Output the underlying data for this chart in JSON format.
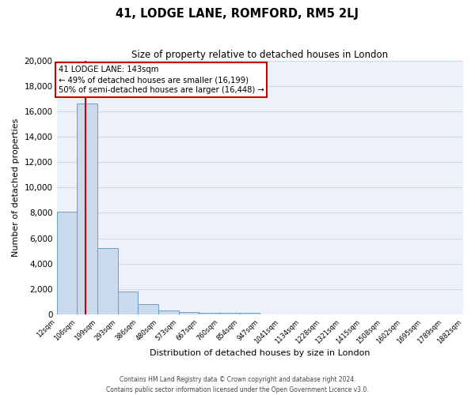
{
  "title": "41, LODGE LANE, ROMFORD, RM5 2LJ",
  "subtitle": "Size of property relative to detached houses in London",
  "xlabel": "Distribution of detached houses by size in London",
  "ylabel": "Number of detached properties",
  "bar_values": [
    8100,
    16600,
    5200,
    1800,
    800,
    300,
    200,
    150,
    100,
    100,
    0,
    0,
    0,
    0,
    0,
    0,
    0,
    0,
    0,
    0
  ],
  "bin_edges": [
    12,
    106,
    199,
    293,
    386,
    480,
    573,
    667,
    760,
    854,
    947,
    1041,
    1134,
    1228,
    1321,
    1415,
    1508,
    1602,
    1695,
    1789,
    1882
  ],
  "x_tick_labels": [
    "12sqm",
    "106sqm",
    "199sqm",
    "293sqm",
    "386sqm",
    "480sqm",
    "573sqm",
    "667sqm",
    "760sqm",
    "854sqm",
    "947sqm",
    "1041sqm",
    "1134sqm",
    "1228sqm",
    "1321sqm",
    "1415sqm",
    "1508sqm",
    "1602sqm",
    "1695sqm",
    "1789sqm",
    "1882sqm"
  ],
  "bar_color": "#cad9ec",
  "bar_edge_color": "#6a9ec5",
  "red_line_x": 143,
  "annotation_title": "41 LODGE LANE: 143sqm",
  "annotation_line1": "← 49% of detached houses are smaller (16,199)",
  "annotation_line2": "50% of semi-detached houses are larger (16,448) →",
  "annotation_box_facecolor": "#ffffff",
  "annotation_box_edgecolor": "#cc0000",
  "red_line_color": "#cc0000",
  "ylim_max": 20000,
  "yticks": [
    0,
    2000,
    4000,
    6000,
    8000,
    10000,
    12000,
    14000,
    16000,
    18000,
    20000
  ],
  "bg_color": "#edf2fa",
  "grid_color": "#d0d8e8",
  "footer_line1": "Contains HM Land Registry data © Crown copyright and database right 2024.",
  "footer_line2": "Contains public sector information licensed under the Open Government Licence v3.0."
}
